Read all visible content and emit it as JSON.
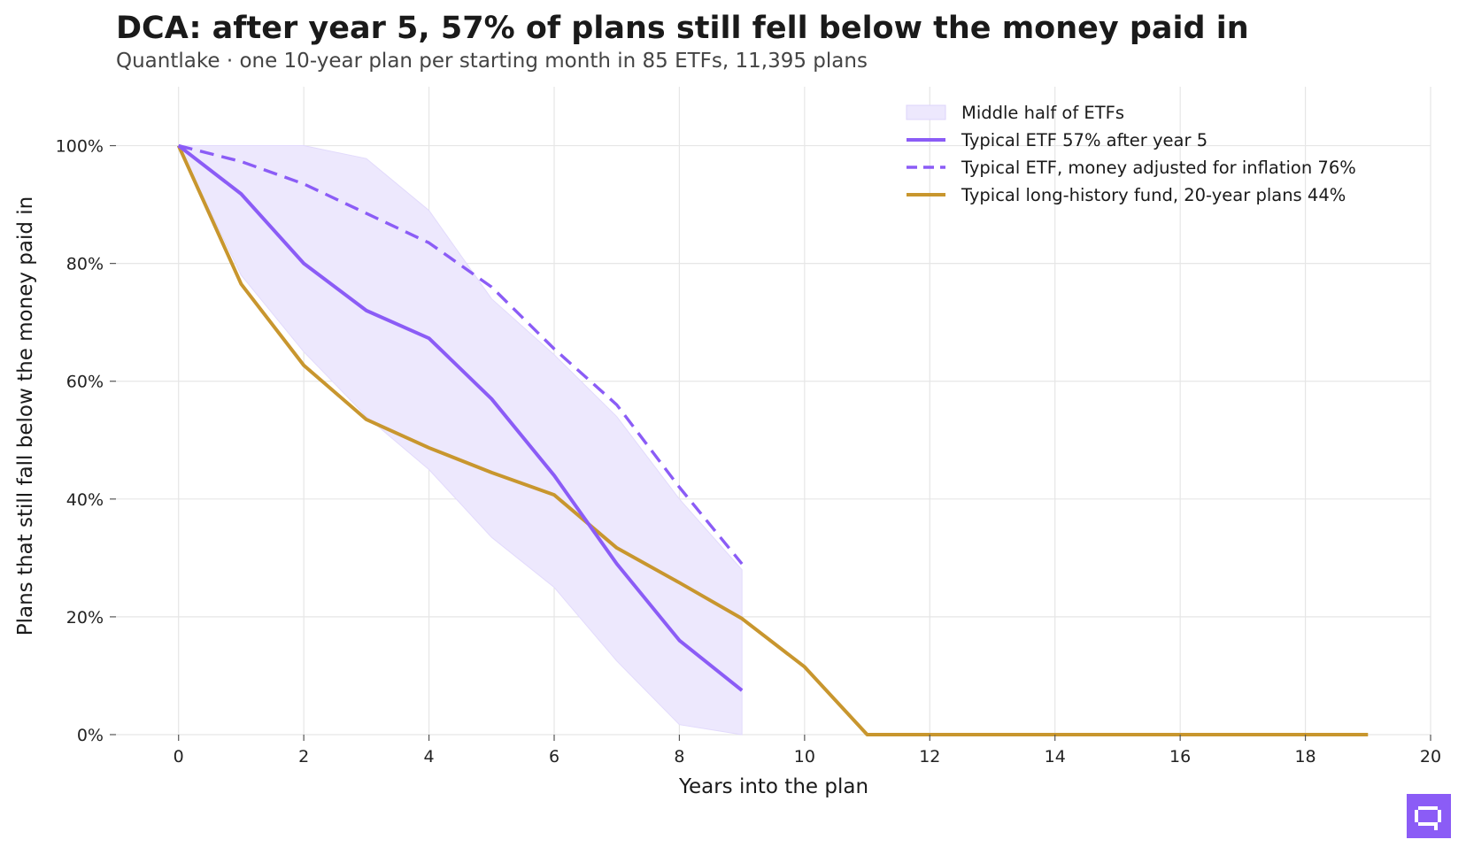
{
  "header": {
    "title": "DCA: after year 5, 57% of plans still fell below the money paid in",
    "subtitle": "Quantlake  ·  one 10-year plan per starting month in 85 ETFs, 11,395 plans"
  },
  "colors": {
    "purple": "#8b5cf6",
    "purple_band": "#ede8fd",
    "gold": "#c8962e",
    "grid": "#e6e6e6",
    "logo": "#8b5cf6"
  },
  "logo": {
    "icon": "quantlake-logo-icon"
  },
  "chart_data": {
    "type": "line",
    "title": "DCA: after year 5, 57% of plans still fell below the money paid in",
    "subtitle": "Quantlake  ·  one 10-year plan per starting month in 85 ETFs, 11,395 plans",
    "xlabel": "Years into the plan",
    "ylabel": "Plans that still fall below the money paid in",
    "xlim": [
      -1,
      20
    ],
    "ylim": [
      0,
      1.1
    ],
    "xticks": [
      0,
      2,
      4,
      6,
      8,
      10,
      12,
      14,
      16,
      18,
      20
    ],
    "xtick_labels": [
      "0",
      "2",
      "4",
      "6",
      "8",
      "10",
      "12",
      "14",
      "16",
      "18",
      "20"
    ],
    "yticks": [
      0,
      0.2,
      0.4,
      0.6,
      0.8,
      1.0
    ],
    "ytick_labels": [
      "0%",
      "20%",
      "40%",
      "60%",
      "80%",
      "100%"
    ],
    "grid": true,
    "legend_position": "top-right",
    "band": {
      "name": "Middle half of ETFs",
      "x": [
        0,
        1,
        2,
        3,
        4,
        5,
        6,
        7,
        8,
        9
      ],
      "lower": [
        1.0,
        0.78,
        0.65,
        0.54,
        0.45,
        0.335,
        0.25,
        0.125,
        0.017,
        0.0
      ],
      "upper": [
        1.0,
        1.0,
        1.0,
        0.978,
        0.89,
        0.74,
        0.645,
        0.54,
        0.4,
        0.28
      ]
    },
    "series": [
      {
        "name": "Typical ETF  57% after year 5",
        "style": "solid",
        "color": "#8b5cf6",
        "x": [
          0,
          1,
          2,
          3,
          4,
          5,
          6,
          7,
          8,
          9
        ],
        "y": [
          1.0,
          0.918,
          0.8,
          0.72,
          0.673,
          0.57,
          0.44,
          0.29,
          0.16,
          0.075
        ]
      },
      {
        "name": "Typical ETF, money adjusted for inflation  76%",
        "style": "dashed",
        "color": "#8b5cf6",
        "x": [
          0,
          1,
          2,
          3,
          4,
          5,
          6,
          7,
          8,
          9
        ],
        "y": [
          1.0,
          0.973,
          0.935,
          0.885,
          0.835,
          0.76,
          0.655,
          0.56,
          0.42,
          0.29
        ]
      },
      {
        "name": "Typical long-history fund, 20-year plans  44%",
        "style": "solid",
        "color": "#c8962e",
        "x": [
          0,
          1,
          2,
          3,
          4,
          5,
          6,
          7,
          8,
          9,
          10,
          11,
          12,
          13,
          14,
          15,
          16,
          17,
          18,
          19
        ],
        "y": [
          1.0,
          0.765,
          0.627,
          0.535,
          0.487,
          0.445,
          0.407,
          0.317,
          0.258,
          0.197,
          0.115,
          0.0,
          0.0,
          0.0,
          0.0,
          0.0,
          0.0,
          0.0,
          0.0,
          0.0
        ]
      }
    ]
  }
}
